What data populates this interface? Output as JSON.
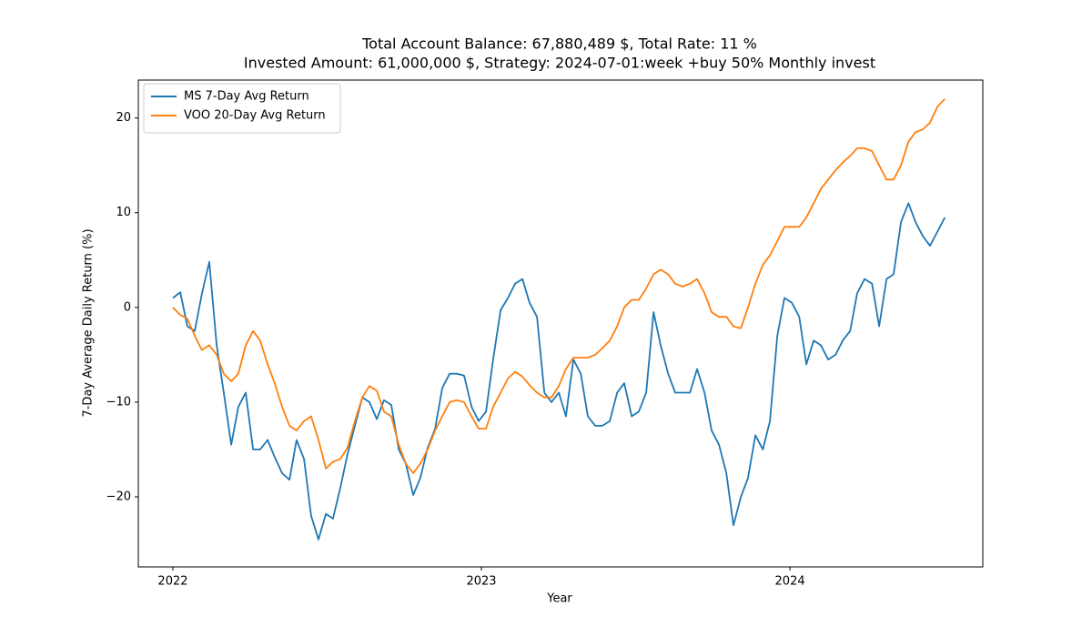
{
  "chart_data": {
    "type": "line",
    "title": "Total Account Balance: 67,880,489 $, Total Rate: 11 %",
    "subtitle": "Invested Amount: 61,000,000 $, Strategy: 2024-07-01:week +buy 50% Monthly invest",
    "xlabel": "Year",
    "ylabel": "7-Day Average Daily Return (%)",
    "xlim": [
      2021.888,
      2024.625
    ],
    "ylim": [
      -27.4,
      24.0
    ],
    "xticks": [
      2022,
      2023,
      2024
    ],
    "yticks": [
      {
        "value": -20,
        "label": "−20"
      },
      {
        "value": -10,
        "label": "−10"
      },
      0,
      10,
      20
    ],
    "grid": false,
    "legend": "upper left",
    "x": [
      2022,
      2022.024,
      2022.047,
      2022.071,
      2022.094,
      2022.118,
      2022.142,
      2022.165,
      2022.189,
      2022.212,
      2022.236,
      2022.26,
      2022.283,
      2022.307,
      2022.33,
      2022.354,
      2022.378,
      2022.401,
      2022.425,
      2022.448,
      2022.472,
      2022.496,
      2022.519,
      2022.543,
      2022.566,
      2022.59,
      2022.614,
      2022.637,
      2022.661,
      2022.684,
      2022.708,
      2022.732,
      2022.755,
      2022.779,
      2022.802,
      2022.826,
      2022.85,
      2022.873,
      2022.897,
      2022.92,
      2022.944,
      2022.968,
      2022.991,
      2023.015,
      2023.038,
      2023.062,
      2023.086,
      2023.109,
      2023.133,
      2023.156,
      2023.18,
      2023.204,
      2023.227,
      2023.251,
      2023.274,
      2023.298,
      2023.322,
      2023.345,
      2023.369,
      2023.392,
      2023.416,
      2023.44,
      2023.463,
      2023.487,
      2023.51,
      2023.534,
      2023.558,
      2023.581,
      2023.605,
      2023.628,
      2023.652,
      2023.676,
      2023.699,
      2023.723,
      2023.746,
      2023.77,
      2023.794,
      2023.817,
      2023.841,
      2023.864,
      2023.888,
      2023.912,
      2023.935,
      2023.959,
      2023.982,
      2024.006,
      2024.03,
      2024.053,
      2024.077,
      2024.1,
      2024.124,
      2024.148,
      2024.171,
      2024.195,
      2024.218,
      2024.242,
      2024.266,
      2024.289,
      2024.313,
      2024.336,
      2024.36,
      2024.384,
      2024.407,
      2024.431,
      2024.454,
      2024.478,
      2024.502
    ],
    "series": [
      {
        "name": "MS 7-Day Avg Return",
        "color": "#1f77b4",
        "values": [
          1,
          1.6,
          -2,
          -2.5,
          1.4,
          4.8,
          -4,
          -9,
          -14.5,
          -10.5,
          -9,
          -15,
          -15,
          -14,
          -15.8,
          -17.5,
          -18.2,
          -14,
          -16,
          -22,
          -24.5,
          -21.8,
          -22.3,
          -19,
          -15.5,
          -12.5,
          -9.5,
          -10,
          -11.8,
          -9.8,
          -10.3,
          -15,
          -16.5,
          -19.8,
          -18,
          -14.8,
          -12.8,
          -8.5,
          -7,
          -7,
          -7.2,
          -10.5,
          -12,
          -11,
          -5.5,
          -0.3,
          1,
          2.5,
          3,
          0.5,
          -1,
          -9,
          -10,
          -9,
          -11.5,
          -5.5,
          -7,
          -11.5,
          -12.5,
          -12.5,
          -12,
          -9,
          -8,
          -11.5,
          -11,
          -9,
          -0.5,
          -4,
          -7,
          -9,
          -9,
          -9,
          -6.5,
          -9,
          -13,
          -14.5,
          -17.5,
          -23,
          -20,
          -18,
          -13.5,
          -15,
          -12,
          -3,
          1,
          0.5,
          -1,
          -6,
          -3.5,
          -4,
          -5.5,
          -5,
          -3.5,
          -2.5,
          1.5,
          3,
          2.5,
          -2,
          3,
          3.5,
          9,
          11,
          9,
          7.5,
          6.5,
          8,
          9.5
        ]
      },
      {
        "name": "VOO 20-Day Avg Return",
        "color": "#ff7f0e",
        "values": [
          0,
          -0.8,
          -1.2,
          -3,
          -4.5,
          -4,
          -5,
          -7,
          -7.8,
          -7,
          -4,
          -2.5,
          -3.5,
          -6,
          -8,
          -10.5,
          -12.5,
          -13,
          -12,
          -11.5,
          -14,
          -17,
          -16.3,
          -16,
          -14.8,
          -12,
          -9.5,
          -8.3,
          -8.8,
          -11,
          -11.5,
          -14.5,
          -16.5,
          -17.5,
          -16.5,
          -15,
          -13,
          -11.5,
          -10,
          -9.8,
          -10,
          -11.5,
          -12.8,
          -12.8,
          -10.5,
          -9,
          -7.5,
          -6.8,
          -7.3,
          -8.2,
          -9,
          -9.5,
          -9.5,
          -8.3,
          -6.5,
          -5.3,
          -5.3,
          -5.3,
          -5,
          -4.3,
          -3.5,
          -2,
          0,
          0.8,
          0.8,
          2,
          3.5,
          4,
          3.5,
          2.5,
          2.2,
          2.5,
          3,
          1.5,
          -0.5,
          -1,
          -1,
          -2,
          -2.2,
          0,
          2.5,
          4.5,
          5.5,
          7,
          8.5,
          8.5,
          8.5,
          9.5,
          11,
          12.5,
          13.5,
          14.5,
          15.3,
          16,
          16.8,
          16.8,
          16.5,
          15,
          13.5,
          13.5,
          15,
          17.5,
          18.5,
          18.8,
          19.5,
          21.2,
          22
        ]
      }
    ]
  }
}
